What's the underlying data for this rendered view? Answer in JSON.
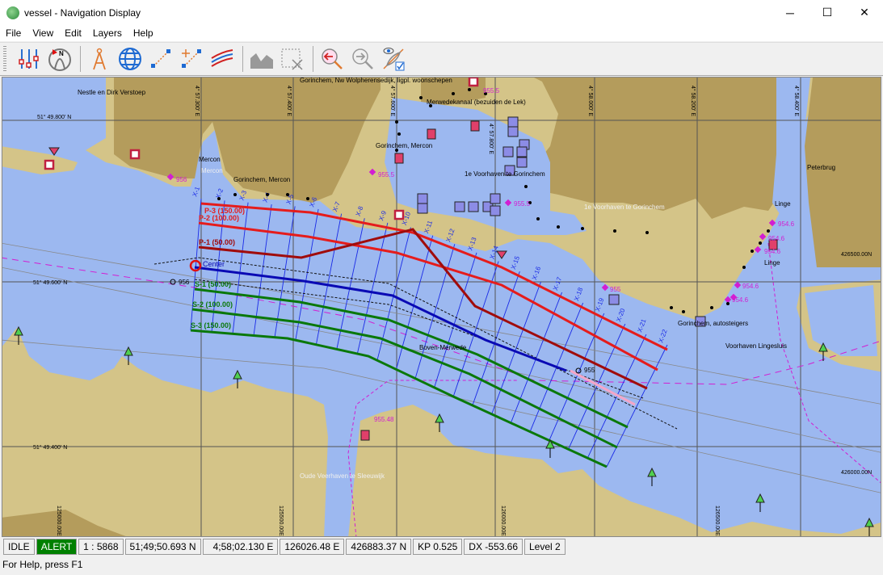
{
  "window": {
    "title": "vessel - Navigation Display",
    "minimize": "─",
    "maximize": "☐",
    "close": "✕"
  },
  "menu": [
    "File",
    "View",
    "Edit",
    "Layers",
    "Help"
  ],
  "toolbar": [
    {
      "icon": "sliders-icon"
    },
    {
      "icon": "north-arrow-icon"
    },
    {
      "icon": "compass-divider-icon"
    },
    {
      "icon": "globe-icon"
    },
    {
      "icon": "route-line-icon"
    },
    {
      "icon": "add-route-point-icon"
    },
    {
      "icon": "parallel-lines-icon"
    },
    {
      "icon": "profile-chart-icon"
    },
    {
      "icon": "clear-selection-icon"
    },
    {
      "icon": "zoom-back-icon"
    },
    {
      "icon": "zoom-forward-icon"
    },
    {
      "icon": "visibility-toggle-icon"
    }
  ],
  "map": {
    "colors": {
      "water": "#9cb8f0",
      "land_dark": "#b49c5c",
      "land_light": "#d4c488",
      "starboard": "#e51c1c",
      "port_dark": "#a00c0c",
      "center": "#0a0ab4",
      "offset_green": "#0a780a",
      "cross": "#1a2ae6",
      "magenta": "#d21ed2"
    },
    "lat_labels": [
      "51° 49.800' N",
      "51° 49.600' N",
      "51° 49.400' N"
    ],
    "lon_labels": [
      "4° 57.300' E",
      "4° 57.400' E",
      "4° 57.600' E",
      "4° 57.800' E",
      "4° 58.000' E",
      "4° 58.200' E",
      "4° 58.400' E"
    ],
    "grid_labels": [
      "426500.00N",
      "426000.00N",
      "125000.00E",
      "125500.00E",
      "126000.00E",
      "126500.00E"
    ],
    "place_labels": [
      "Nestle en Dirk Verstoep",
      "Gorinchem, Nw Wolpherensedijk, ligpl. woonschepen",
      "Merwedekanaal (bezuiden de Lek)",
      "Mercon",
      "Mercon",
      "Gorinchem, Mercon",
      "Gorinchem, Mercon",
      "1e Voorhaven te Gorinchem",
      "1e Voorhaven te Gorinchem",
      "Peterbrug",
      "Linge",
      "Linge",
      "Gorinchem, autosteigers",
      "Voorhaven Lingesluis",
      "Boven-Merwede",
      "Oude Veerhaven te Sleeuwijk"
    ],
    "depth_labels": [
      "956",
      "955.5",
      "955.5",
      "955.5",
      "955",
      "954.6",
      "954.6",
      "954.6",
      "954.6",
      "954.6",
      "955",
      "955.48",
      "956"
    ],
    "route": {
      "center_label": "Center",
      "offsets": [
        {
          "label": "P-3 (150.00)"
        },
        {
          "label": "P-2 (100.00)"
        },
        {
          "label": "P-1 (50.00)"
        },
        {
          "label": "S-1 (50.00)"
        },
        {
          "label": "S-2 (100.00)"
        },
        {
          "label": "S-3 (150.00)"
        }
      ],
      "cross_sections": [
        "X-1",
        "X-2",
        "X-3",
        "X-4",
        "X-5",
        "X-6",
        "X-7",
        "X-8",
        "X-9",
        "X-10",
        "X-11",
        "X-12",
        "X-13",
        "X-14",
        "X-15",
        "X-16",
        "X-17",
        "X-18",
        "X-19",
        "X-20",
        "X-21",
        "X-22"
      ]
    }
  },
  "status": {
    "state": "IDLE",
    "alert": "ALERT",
    "scale": "1 : 5868",
    "lat": "51;49;50.693 N",
    "lon": "4;58;02.130 E",
    "easting": "126026.48 E",
    "northing": "426883.37 N",
    "kp": "KP 0.525",
    "dx": "DX -553.66",
    "level": "Level 2",
    "help": "For Help, press F1"
  }
}
